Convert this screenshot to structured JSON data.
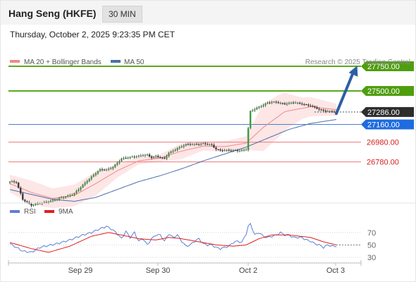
{
  "header": {
    "title": "Hang Seng (HKFE)",
    "interval": "30 MIN"
  },
  "datetime": "Thursday, October 2, 2025 9:23:35 PM CET",
  "legend": {
    "ma_label": "MA 20 + Bollinger Bands",
    "ma50_label": "MA 50"
  },
  "copyright": "Research © 2025 Trading Central",
  "colors": {
    "resistance": "#5aa81f",
    "resistance_bg": "#4f9e10",
    "support": "#ee7777",
    "pivot": "#4a7fd4",
    "pivot_bg": "#1e6ce0",
    "current_bg": "#2d2d2d",
    "arrow": "#2e5fa3",
    "ma20": "#f08a8a",
    "bb_fill": "#fde2e2",
    "ma50": "#4a6fa8",
    "rsi": "#5b7fd6",
    "rsi_ma": "#e01e1e"
  },
  "chart_data": [
    {
      "type": "candlestick",
      "title": "Hang Seng (HKFE)",
      "ylim": [
        26470,
        27900
      ],
      "x_ticks": [
        "Sep 29",
        "Sep 30",
        "Oct 2",
        "Oct 3"
      ],
      "key_levels": [
        {
          "value": 27750,
          "label": "27750.00",
          "kind": "resistance"
        },
        {
          "value": 27500,
          "label": "27500.00",
          "kind": "resistance"
        },
        {
          "value": 27286,
          "label": "27286.00",
          "kind": "current"
        },
        {
          "value": 27160,
          "label": "27160.00",
          "kind": "pivot"
        },
        {
          "value": 26980,
          "label": "26980.00",
          "kind": "support"
        },
        {
          "value": 26780,
          "label": "26780.00",
          "kind": "support"
        }
      ],
      "scenario": "up",
      "anchors": {
        "close": [
          [
            0,
            26580
          ],
          [
            3,
            26570
          ],
          [
            6,
            26400
          ],
          [
            10,
            26340
          ],
          [
            14,
            26360
          ],
          [
            18,
            26380
          ],
          [
            22,
            26400
          ],
          [
            26,
            26430
          ],
          [
            30,
            26460
          ],
          [
            33,
            26520
          ],
          [
            36,
            26590
          ],
          [
            39,
            26650
          ],
          [
            42,
            26700
          ],
          [
            45,
            26700
          ],
          [
            48,
            26730
          ],
          [
            52,
            26810
          ],
          [
            56,
            26830
          ],
          [
            60,
            26840
          ],
          [
            64,
            26850
          ],
          [
            66,
            26825
          ],
          [
            68,
            26840
          ],
          [
            72,
            26810
          ],
          [
            74,
            26870
          ],
          [
            78,
            26920
          ],
          [
            82,
            26955
          ],
          [
            86,
            26960
          ],
          [
            90,
            26965
          ],
          [
            94,
            26950
          ],
          [
            96,
            26910
          ],
          [
            98,
            26900
          ],
          [
            102,
            26895
          ],
          [
            106,
            26895
          ],
          [
            110,
            26905
          ],
          [
            111,
            27120
          ],
          [
            112,
            27290
          ],
          [
            116,
            27340
          ],
          [
            120,
            27380
          ],
          [
            124,
            27385
          ],
          [
            128,
            27370
          ],
          [
            132,
            27380
          ],
          [
            136,
            27370
          ],
          [
            140,
            27350
          ],
          [
            144,
            27310
          ],
          [
            148,
            27295
          ],
          [
            152,
            27286
          ]
        ],
        "ma20": [
          [
            0,
            26560
          ],
          [
            10,
            26470
          ],
          [
            20,
            26410
          ],
          [
            30,
            26440
          ],
          [
            40,
            26560
          ],
          [
            50,
            26690
          ],
          [
            60,
            26790
          ],
          [
            70,
            26820
          ],
          [
            80,
            26890
          ],
          [
            90,
            26940
          ],
          [
            100,
            26935
          ],
          [
            110,
            26970
          ],
          [
            118,
            27130
          ],
          [
            128,
            27290
          ],
          [
            140,
            27340
          ],
          [
            152,
            27310
          ]
        ],
        "bb_half": [
          [
            0,
            90
          ],
          [
            10,
            120
          ],
          [
            20,
            100
          ],
          [
            30,
            110
          ],
          [
            40,
            120
          ],
          [
            50,
            70
          ],
          [
            60,
            35
          ],
          [
            70,
            35
          ],
          [
            80,
            80
          ],
          [
            90,
            45
          ],
          [
            100,
            55
          ],
          [
            110,
            70
          ],
          [
            118,
            240
          ],
          [
            126,
            210
          ],
          [
            136,
            110
          ],
          [
            152,
            60
          ]
        ],
        "ma50": [
          [
            0,
            26500
          ],
          [
            10,
            26450
          ],
          [
            20,
            26400
          ],
          [
            30,
            26380
          ],
          [
            40,
            26420
          ],
          [
            50,
            26500
          ],
          [
            60,
            26580
          ],
          [
            70,
            26640
          ],
          [
            80,
            26710
          ],
          [
            90,
            26790
          ],
          [
            100,
            26860
          ],
          [
            110,
            26930
          ],
          [
            120,
            27020
          ],
          [
            130,
            27110
          ],
          [
            140,
            27170
          ],
          [
            152,
            27210
          ]
        ]
      }
    },
    {
      "type": "line",
      "title": "RSI",
      "series": [
        {
          "name": "RSI"
        },
        {
          "name": "9MA"
        }
      ],
      "ylim": [
        22,
        88
      ],
      "y_ticks": [
        70,
        50,
        30
      ],
      "rsi_anchors": [
        [
          0,
          52
        ],
        [
          6,
          40
        ],
        [
          10,
          38
        ],
        [
          14,
          46
        ],
        [
          22,
          52
        ],
        [
          28,
          58
        ],
        [
          34,
          66
        ],
        [
          38,
          70
        ],
        [
          42,
          76
        ],
        [
          45,
          80
        ],
        [
          48,
          74
        ],
        [
          50,
          68
        ],
        [
          52,
          60
        ],
        [
          54,
          72
        ],
        [
          56,
          62
        ],
        [
          58,
          70
        ],
        [
          60,
          56
        ],
        [
          62,
          60
        ],
        [
          64,
          50
        ],
        [
          66,
          60
        ],
        [
          68,
          66
        ],
        [
          70,
          66
        ],
        [
          72,
          56
        ],
        [
          74,
          68
        ],
        [
          76,
          62
        ],
        [
          78,
          66
        ],
        [
          80,
          56
        ],
        [
          82,
          48
        ],
        [
          84,
          50
        ],
        [
          86,
          56
        ],
        [
          88,
          60
        ],
        [
          90,
          52
        ],
        [
          92,
          50
        ],
        [
          94,
          50
        ],
        [
          96,
          46
        ],
        [
          98,
          44
        ],
        [
          100,
          46
        ],
        [
          102,
          48
        ],
        [
          104,
          54
        ],
        [
          106,
          56
        ],
        [
          108,
          54
        ],
        [
          110,
          68
        ],
        [
          111,
          80
        ],
        [
          112,
          84
        ],
        [
          114,
          66
        ],
        [
          116,
          70
        ],
        [
          118,
          64
        ],
        [
          120,
          62
        ],
        [
          124,
          66
        ],
        [
          126,
          70
        ],
        [
          128,
          66
        ],
        [
          130,
          66
        ],
        [
          132,
          62
        ],
        [
          136,
          62
        ],
        [
          138,
          58
        ],
        [
          140,
          56
        ],
        [
          142,
          52
        ],
        [
          144,
          50
        ],
        [
          146,
          46
        ],
        [
          148,
          50
        ],
        [
          150,
          48
        ],
        [
          152,
          48
        ]
      ],
      "ma_anchors": [
        [
          0,
          54
        ],
        [
          10,
          44
        ],
        [
          18,
          38
        ],
        [
          28,
          48
        ],
        [
          38,
          64
        ],
        [
          46,
          70
        ],
        [
          52,
          66
        ],
        [
          60,
          60
        ],
        [
          68,
          58
        ],
        [
          74,
          62
        ],
        [
          80,
          60
        ],
        [
          88,
          55
        ],
        [
          96,
          50
        ],
        [
          104,
          48
        ],
        [
          110,
          50
        ],
        [
          116,
          60
        ],
        [
          122,
          66
        ],
        [
          130,
          66
        ],
        [
          140,
          62
        ],
        [
          146,
          55
        ],
        [
          152,
          50
        ]
      ]
    }
  ]
}
